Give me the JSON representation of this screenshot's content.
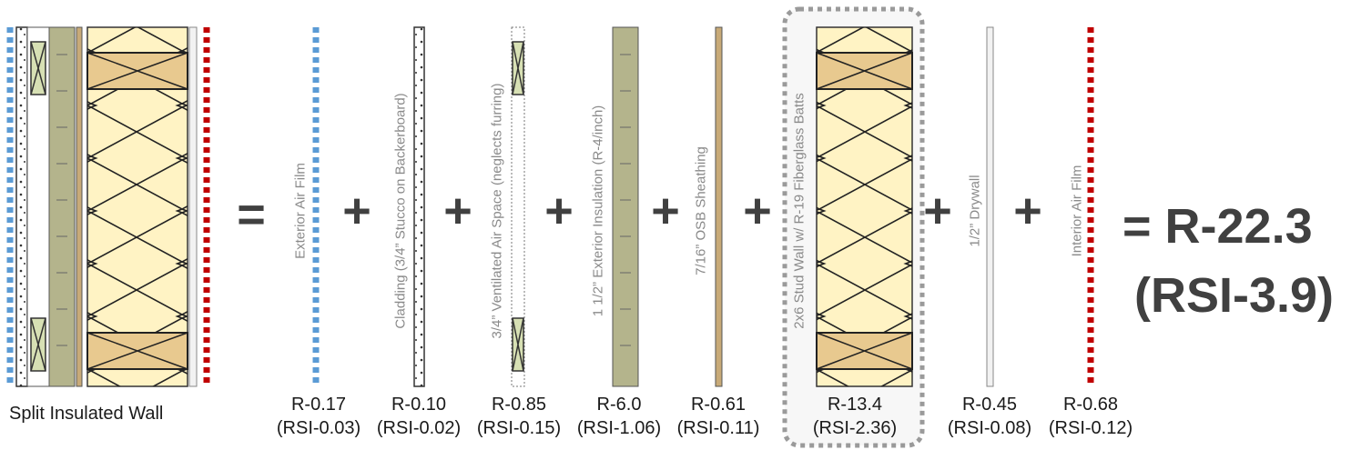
{
  "composite": {
    "caption": "Split Insulated Wall",
    "equals": "="
  },
  "operator": "+",
  "result": {
    "r_value": "= R-22.3",
    "rsi_value": "(RSI-3.9)"
  },
  "layers": [
    {
      "label": "Exterior Air Film",
      "r": "R-0.17",
      "rsi": "(RSI-0.03)",
      "color": "#5b9bd5"
    },
    {
      "label": "Cladding (3/4” Stucco on Backerboard)",
      "r": "R-0.10",
      "rsi": "(RSI-0.02)"
    },
    {
      "label": "3/4” Ventilated Air Space (neglects furring)",
      "r": "R-0.85",
      "rsi": "(RSI-0.15)"
    },
    {
      "label": "1 1/2” Exterior Insulation (R-4/inch)",
      "r": "R-6.0",
      "rsi": "(RSI-1.06)",
      "color": "#b4b48c"
    },
    {
      "label": "7/16” OSB Sheathing",
      "r": "R-0.61",
      "rsi": "(RSI-0.11)",
      "color": "#c8aa78"
    },
    {
      "label": "2x6 Stud Wall w/ R-19 Fiberglass Batts",
      "r": "R-13.4",
      "rsi": "(RSI-2.36)",
      "color": "#fff3c4"
    },
    {
      "label": "1/2” Drywall",
      "r": "R-0.45",
      "rsi": "(RSI-0.08)"
    },
    {
      "label": "Interior Air Film",
      "r": "R-0.68",
      "rsi": "(RSI-0.12)",
      "color": "#c00000"
    }
  ]
}
